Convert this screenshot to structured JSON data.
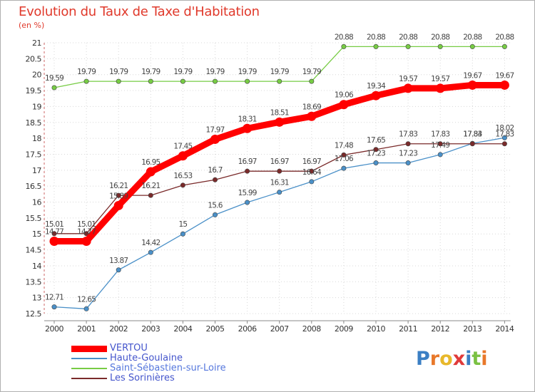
{
  "chart_data": {
    "type": "line",
    "title": "Evolution du Taux de Taxe d'Habitation",
    "subtitle": "(en %)",
    "x": [
      "2000",
      "2001",
      "2002",
      "2003",
      "2004",
      "2005",
      "2006",
      "2007",
      "2008",
      "2009",
      "2010",
      "2011",
      "2012",
      "2013",
      "2014"
    ],
    "ylim": [
      12.5,
      21
    ],
    "yticks": [
      "12.5",
      "13",
      "13.5",
      "14",
      "14.5",
      "15",
      "15.5",
      "16",
      "16.5",
      "17",
      "17.5",
      "18",
      "18.5",
      "19",
      "19.5",
      "20",
      "20.5",
      "21"
    ],
    "grid": true,
    "legend_position": "bottom-left",
    "series": [
      {
        "name": "VERTOU",
        "color": "#ff0000",
        "values": [
          14.77,
          14.77,
          15.89,
          16.95,
          17.45,
          17.97,
          18.31,
          18.51,
          18.69,
          19.06,
          19.34,
          19.57,
          19.57,
          19.67,
          19.67
        ]
      },
      {
        "name": "Haute-Goulaine",
        "color": "#4a90c8",
        "values": [
          12.71,
          12.65,
          13.87,
          14.42,
          15,
          15.6,
          15.99,
          16.31,
          16.64,
          17.06,
          17.23,
          17.23,
          17.49,
          17.84,
          18.02
        ]
      },
      {
        "name": "Saint-Sébastien-sur-Loire",
        "color": "#77cc44",
        "values": [
          19.59,
          19.79,
          19.79,
          19.79,
          19.79,
          19.79,
          19.79,
          19.79,
          19.79,
          20.88,
          20.88,
          20.88,
          20.88,
          20.88,
          20.88
        ]
      },
      {
        "name": "Les Sorinières",
        "color": "#7a2a2a",
        "values": [
          15.01,
          15.01,
          16.21,
          16.21,
          16.53,
          16.7,
          16.97,
          16.97,
          16.97,
          17.48,
          17.65,
          17.83,
          17.83,
          17.83,
          17.83
        ]
      }
    ]
  },
  "logo": {
    "letters": [
      "P",
      "r",
      "o",
      "x",
      "i",
      "t",
      "i"
    ],
    "colors": [
      "#3b7fc4",
      "#e8782a",
      "#e8b82a",
      "#e03a3a",
      "#3b7fc4",
      "#7ac143",
      "#e8782a"
    ]
  }
}
